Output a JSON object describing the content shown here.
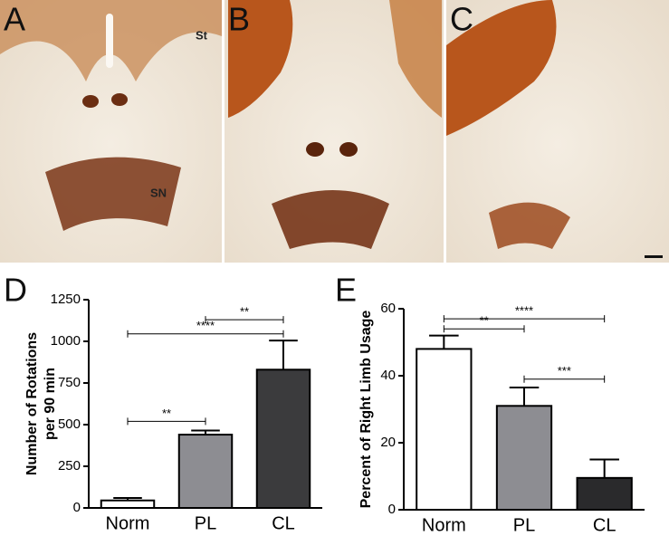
{
  "panels": [
    {
      "label": "A",
      "notes": [
        "St",
        "SN"
      ]
    },
    {
      "label": "B"
    },
    {
      "label": "C"
    }
  ],
  "chart_data": [
    {
      "type": "bar",
      "panel_label": "D",
      "ylabel": [
        "Number of Rotations",
        "per 90 min"
      ],
      "categories": [
        "Norm",
        "PL",
        "CL"
      ],
      "values": [
        45,
        440,
        830
      ],
      "errors": [
        15,
        25,
        175
      ],
      "colors": [
        "#ffffff",
        "#8d8d92",
        "#3b3b3d"
      ],
      "ylim": [
        0,
        1250
      ],
      "yticks": [
        0,
        250,
        500,
        750,
        1000,
        1250
      ],
      "annotations": [
        {
          "from": "PL",
          "to": "CL",
          "y": 1130,
          "label": "**"
        },
        {
          "from": "Norm",
          "to": "CL",
          "y": 1045,
          "label": "****"
        },
        {
          "from": "Norm",
          "to": "PL",
          "y": 520,
          "label": "**"
        }
      ]
    },
    {
      "type": "bar",
      "panel_label": "E",
      "ylabel": [
        "Percent of Right Limb Usage"
      ],
      "categories": [
        "Norm",
        "PL",
        "CL"
      ],
      "values": [
        48,
        31,
        9.5
      ],
      "errors": [
        4,
        5.5,
        5.5
      ],
      "colors": [
        "#ffffff",
        "#8d8d92",
        "#2a2a2c"
      ],
      "ylim": [
        0,
        60
      ],
      "yticks": [
        0,
        20,
        40,
        60
      ],
      "annotations": [
        {
          "from": "Norm",
          "to": "CL",
          "y": 57,
          "label": "****"
        },
        {
          "from": "Norm",
          "to": "PL",
          "y": 54,
          "label": "**"
        },
        {
          "from": "PL",
          "to": "CL",
          "y": 39,
          "label": "***"
        }
      ]
    }
  ]
}
